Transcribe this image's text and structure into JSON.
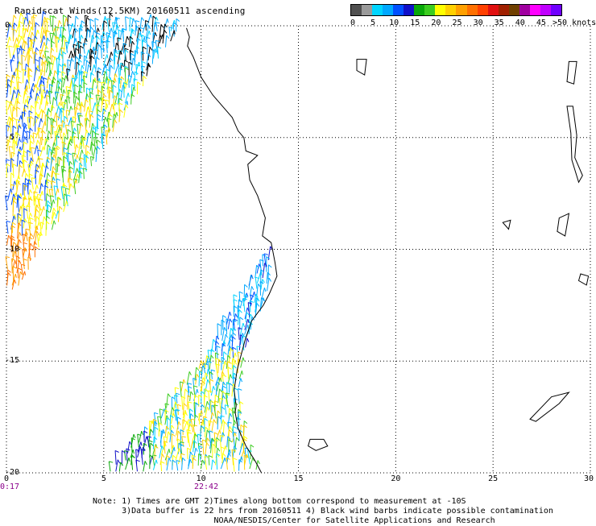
{
  "title": "Rapidscat Winds(12.5KM) 20160511 ascending",
  "legend": {
    "colors": [
      "#505050",
      "#9a9a9a",
      "#00d5ff",
      "#00a8ff",
      "#0050ff",
      "#1010c8",
      "#08a808",
      "#3ccc20",
      "#ffff00",
      "#ffd000",
      "#ffa000",
      "#ff7000",
      "#ff4000",
      "#e01010",
      "#a02000",
      "#704000",
      "#a000a0",
      "#ff00ff",
      "#c000ff",
      "#7000ff"
    ],
    "labels": [
      "0",
      "5",
      "10",
      "15",
      "20",
      "25",
      "30",
      "35",
      "40",
      "45",
      ">50 knots"
    ]
  },
  "axes": {
    "x_ticks": [
      "0",
      "5",
      "10",
      "15",
      "20",
      "25",
      "30"
    ],
    "y_ticks": [
      "0",
      "-5",
      "-10",
      "-15",
      "-20"
    ],
    "lon_range": [
      0,
      30
    ],
    "lat_range": [
      0,
      -20
    ]
  },
  "times": [
    "0:17",
    "22:42"
  ],
  "notes": [
    "Note: 1) Times are GMT 2)Times along bottom correspond to measurement at -10S",
    "      3)Data buffer is 22 hrs from 20160511 4) Black wind barbs indicate possible contamination",
    "                         NOAA/NESDIS/Center for Satellite Applications and Research"
  ],
  "wind_colors": [
    "#1010c8",
    "#0050ff",
    "#00a8ff",
    "#00d5ff",
    "#08a808",
    "#3ccc20",
    "#ffff00",
    "#ffd000",
    "#ffa000",
    "#ff7000",
    "#000000"
  ]
}
